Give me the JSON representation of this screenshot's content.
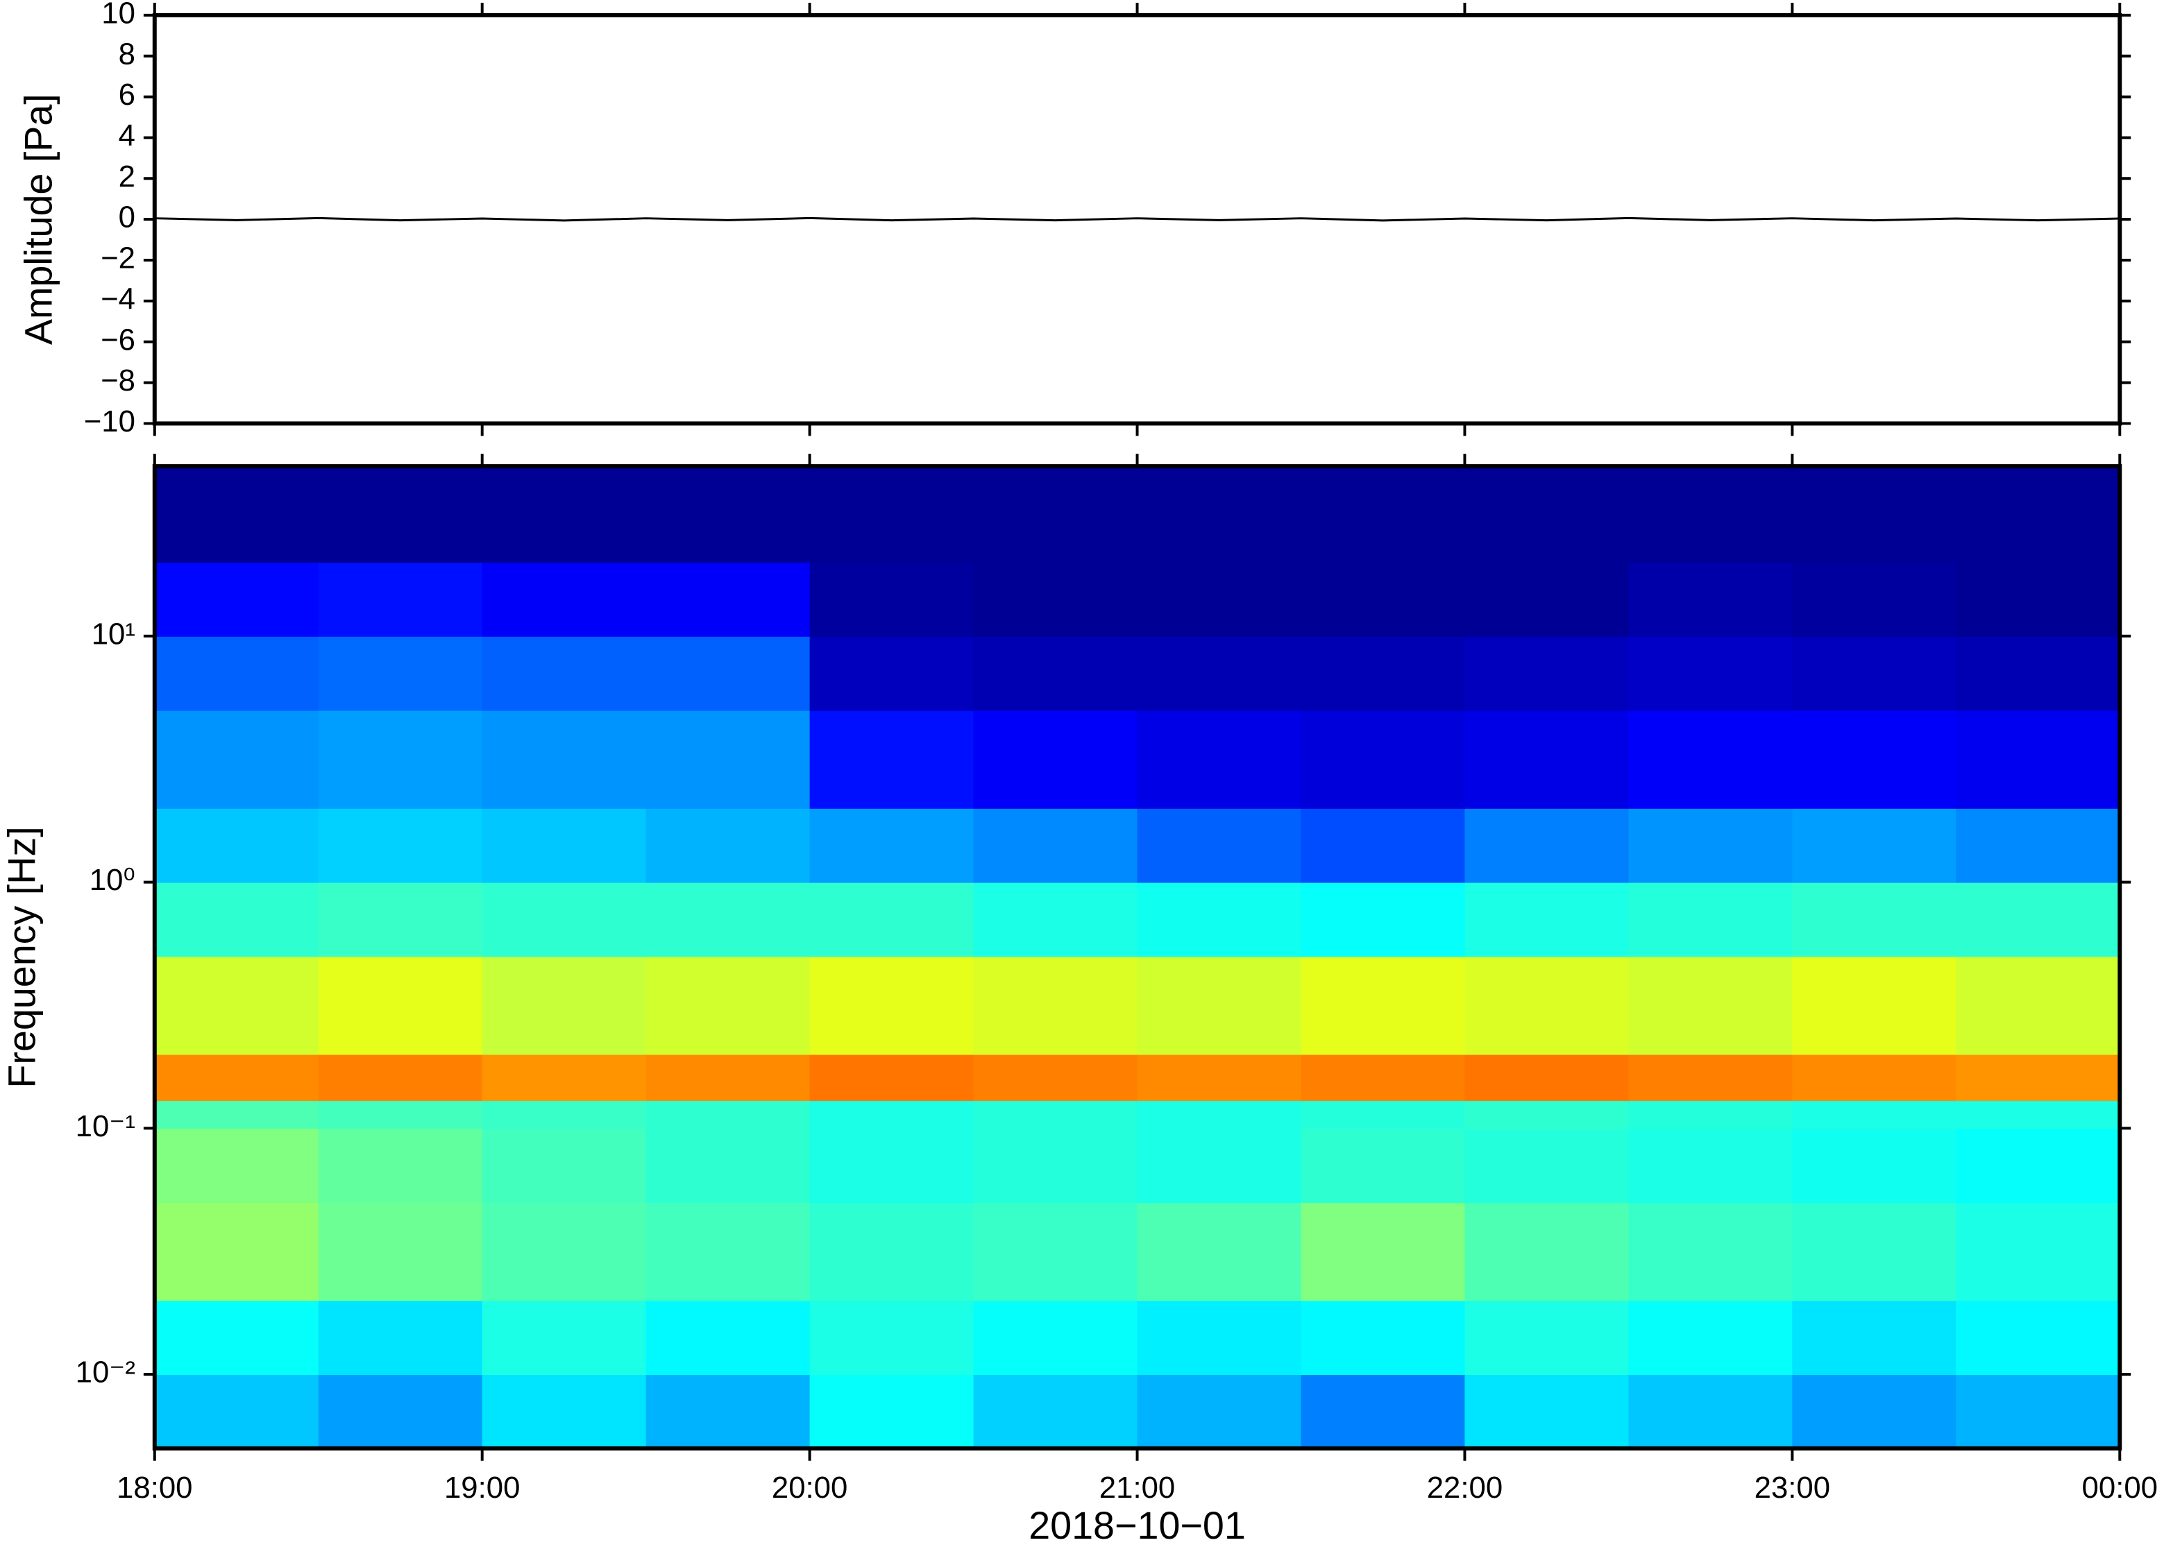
{
  "chart_data": [
    {
      "type": "line",
      "ylabel": "Amplitude [Pa]",
      "color": "#000000",
      "x": [
        18,
        18.25,
        18.5,
        18.75,
        19,
        19.25,
        19.5,
        19.75,
        20,
        20.25,
        20.5,
        20.75,
        21,
        21.25,
        21.5,
        21.75,
        22,
        22.25,
        22.5,
        22.75,
        23,
        23.25,
        23.5,
        23.75,
        24
      ],
      "values": [
        0.05,
        -0.04,
        0.06,
        -0.05,
        0.04,
        -0.06,
        0.05,
        -0.04,
        0.06,
        -0.05,
        0.04,
        -0.05,
        0.05,
        -0.04,
        0.05,
        -0.06,
        0.04,
        -0.05,
        0.06,
        -0.04,
        0.05,
        -0.05,
        0.04,
        -0.05,
        0.04
      ],
      "xlim": [
        18,
        24
      ],
      "xticks": [
        18,
        19,
        20,
        21,
        22,
        23,
        24
      ],
      "ylim": [
        -10,
        10
      ],
      "yticks": [
        {
          "value": -10,
          "label": "−10"
        },
        {
          "value": -8,
          "label": "−8"
        },
        {
          "value": -6,
          "label": "−6"
        },
        {
          "value": -4,
          "label": "−4"
        },
        {
          "value": -2,
          "label": "−2"
        },
        0,
        2,
        4,
        6,
        8,
        10
      ]
    },
    {
      "type": "heatmap",
      "ylabel": "Frequency [Hz]",
      "xlabel": "2018−10−01",
      "colormap": "jet",
      "ylog": true,
      "xbins": [
        18,
        18.5,
        19,
        19.5,
        20,
        20.5,
        21,
        21.5,
        22,
        22.5,
        23,
        23.5,
        24
      ],
      "ybins": [
        0.005,
        0.01,
        0.02,
        0.05,
        0.1,
        0.13,
        0.2,
        0.5,
        1,
        2,
        5,
        10,
        20,
        50
      ],
      "values": [
        [
          0.32,
          0.28,
          0.35,
          0.3,
          0.38,
          0.33,
          0.3,
          0.25,
          0.35,
          0.32,
          0.28,
          0.3
        ],
        [
          0.38,
          0.35,
          0.4,
          0.37,
          0.4,
          0.38,
          0.36,
          0.37,
          0.4,
          0.38,
          0.35,
          0.37
        ],
        [
          0.52,
          0.48,
          0.45,
          0.44,
          0.42,
          0.43,
          0.45,
          0.5,
          0.45,
          0.43,
          0.42,
          0.4
        ],
        [
          0.5,
          0.47,
          0.44,
          0.42,
          0.4,
          0.41,
          0.4,
          0.42,
          0.41,
          0.4,
          0.39,
          0.38
        ],
        [
          0.45,
          0.44,
          0.43,
          0.42,
          0.4,
          0.41,
          0.4,
          0.41,
          0.42,
          0.41,
          0.4,
          0.4
        ],
        [
          0.74,
          0.75,
          0.73,
          0.74,
          0.76,
          0.75,
          0.74,
          0.75,
          0.76,
          0.75,
          0.74,
          0.73
        ],
        [
          0.58,
          0.6,
          0.57,
          0.58,
          0.6,
          0.59,
          0.58,
          0.6,
          0.59,
          0.58,
          0.6,
          0.58
        ],
        [
          0.42,
          0.43,
          0.42,
          0.42,
          0.42,
          0.4,
          0.39,
          0.38,
          0.4,
          0.41,
          0.42,
          0.42
        ],
        [
          0.32,
          0.33,
          0.32,
          0.3,
          0.28,
          0.26,
          0.22,
          0.2,
          0.25,
          0.27,
          0.28,
          0.26
        ],
        [
          0.27,
          0.28,
          0.27,
          0.27,
          0.14,
          0.12,
          0.1,
          0.09,
          0.1,
          0.12,
          0.12,
          0.11
        ],
        [
          0.22,
          0.23,
          0.22,
          0.22,
          0.06,
          0.05,
          0.05,
          0.05,
          0.06,
          0.07,
          0.06,
          0.05
        ],
        [
          0.13,
          0.14,
          0.12,
          0.12,
          0.03,
          0.02,
          0.02,
          0.02,
          0.02,
          0.04,
          0.03,
          0.02
        ],
        [
          0.02,
          0.02,
          0.02,
          0.02,
          0.02,
          0.02,
          0.02,
          0.02,
          0.02,
          0.02,
          0.02,
          0.02
        ]
      ],
      "xlim": [
        18,
        24
      ],
      "xticks": [
        {
          "value": 18,
          "label": "18:00"
        },
        {
          "value": 19,
          "label": "19:00"
        },
        {
          "value": 20,
          "label": "20:00"
        },
        {
          "value": 21,
          "label": "21:00"
        },
        {
          "value": 22,
          "label": "22:00"
        },
        {
          "value": 23,
          "label": "23:00"
        },
        {
          "value": 24,
          "label": "00:00"
        }
      ],
      "ylim": [
        0.005,
        49
      ],
      "yticks": [
        {
          "value": 0.01,
          "label": "10⁻²"
        },
        {
          "value": 0.1,
          "label": "10⁻¹"
        },
        {
          "value": 1,
          "label": "10⁰"
        },
        {
          "value": 10,
          "label": "10¹"
        }
      ]
    }
  ]
}
